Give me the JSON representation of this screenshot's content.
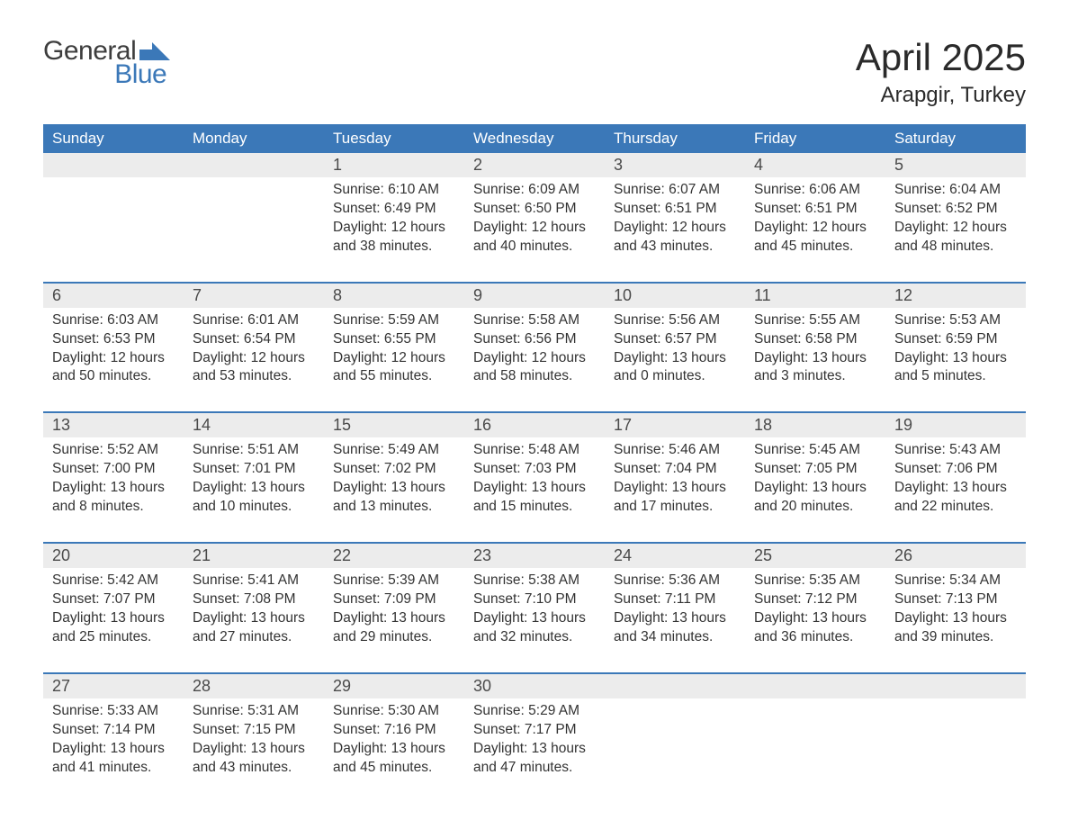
{
  "brand": {
    "word1": "General",
    "word2": "Blue",
    "color1": "#3d3d3d",
    "color2": "#3b78b8"
  },
  "title": {
    "month": "April 2025",
    "location": "Arapgir, Turkey"
  },
  "colors": {
    "header_bg": "#3b78b8",
    "header_text": "#ffffff",
    "daynum_bg": "#ececec",
    "text": "#333333",
    "week_border": "#3b78b8",
    "page_bg": "#ffffff"
  },
  "font": {
    "family": "Arial",
    "daynum_size": 18,
    "body_size": 15.5,
    "header_size": 17,
    "title_size": 42,
    "location_size": 24
  },
  "weekdays": [
    "Sunday",
    "Monday",
    "Tuesday",
    "Wednesday",
    "Thursday",
    "Friday",
    "Saturday"
  ],
  "weeks": [
    [
      null,
      null,
      {
        "n": "1",
        "sr": "6:10 AM",
        "ss": "6:49 PM",
        "dl": "12 hours and 38 minutes."
      },
      {
        "n": "2",
        "sr": "6:09 AM",
        "ss": "6:50 PM",
        "dl": "12 hours and 40 minutes."
      },
      {
        "n": "3",
        "sr": "6:07 AM",
        "ss": "6:51 PM",
        "dl": "12 hours and 43 minutes."
      },
      {
        "n": "4",
        "sr": "6:06 AM",
        "ss": "6:51 PM",
        "dl": "12 hours and 45 minutes."
      },
      {
        "n": "5",
        "sr": "6:04 AM",
        "ss": "6:52 PM",
        "dl": "12 hours and 48 minutes."
      }
    ],
    [
      {
        "n": "6",
        "sr": "6:03 AM",
        "ss": "6:53 PM",
        "dl": "12 hours and 50 minutes."
      },
      {
        "n": "7",
        "sr": "6:01 AM",
        "ss": "6:54 PM",
        "dl": "12 hours and 53 minutes."
      },
      {
        "n": "8",
        "sr": "5:59 AM",
        "ss": "6:55 PM",
        "dl": "12 hours and 55 minutes."
      },
      {
        "n": "9",
        "sr": "5:58 AM",
        "ss": "6:56 PM",
        "dl": "12 hours and 58 minutes."
      },
      {
        "n": "10",
        "sr": "5:56 AM",
        "ss": "6:57 PM",
        "dl": "13 hours and 0 minutes."
      },
      {
        "n": "11",
        "sr": "5:55 AM",
        "ss": "6:58 PM",
        "dl": "13 hours and 3 minutes."
      },
      {
        "n": "12",
        "sr": "5:53 AM",
        "ss": "6:59 PM",
        "dl": "13 hours and 5 minutes."
      }
    ],
    [
      {
        "n": "13",
        "sr": "5:52 AM",
        "ss": "7:00 PM",
        "dl": "13 hours and 8 minutes."
      },
      {
        "n": "14",
        "sr": "5:51 AM",
        "ss": "7:01 PM",
        "dl": "13 hours and 10 minutes."
      },
      {
        "n": "15",
        "sr": "5:49 AM",
        "ss": "7:02 PM",
        "dl": "13 hours and 13 minutes."
      },
      {
        "n": "16",
        "sr": "5:48 AM",
        "ss": "7:03 PM",
        "dl": "13 hours and 15 minutes."
      },
      {
        "n": "17",
        "sr": "5:46 AM",
        "ss": "7:04 PM",
        "dl": "13 hours and 17 minutes."
      },
      {
        "n": "18",
        "sr": "5:45 AM",
        "ss": "7:05 PM",
        "dl": "13 hours and 20 minutes."
      },
      {
        "n": "19",
        "sr": "5:43 AM",
        "ss": "7:06 PM",
        "dl": "13 hours and 22 minutes."
      }
    ],
    [
      {
        "n": "20",
        "sr": "5:42 AM",
        "ss": "7:07 PM",
        "dl": "13 hours and 25 minutes."
      },
      {
        "n": "21",
        "sr": "5:41 AM",
        "ss": "7:08 PM",
        "dl": "13 hours and 27 minutes."
      },
      {
        "n": "22",
        "sr": "5:39 AM",
        "ss": "7:09 PM",
        "dl": "13 hours and 29 minutes."
      },
      {
        "n": "23",
        "sr": "5:38 AM",
        "ss": "7:10 PM",
        "dl": "13 hours and 32 minutes."
      },
      {
        "n": "24",
        "sr": "5:36 AM",
        "ss": "7:11 PM",
        "dl": "13 hours and 34 minutes."
      },
      {
        "n": "25",
        "sr": "5:35 AM",
        "ss": "7:12 PM",
        "dl": "13 hours and 36 minutes."
      },
      {
        "n": "26",
        "sr": "5:34 AM",
        "ss": "7:13 PM",
        "dl": "13 hours and 39 minutes."
      }
    ],
    [
      {
        "n": "27",
        "sr": "5:33 AM",
        "ss": "7:14 PM",
        "dl": "13 hours and 41 minutes."
      },
      {
        "n": "28",
        "sr": "5:31 AM",
        "ss": "7:15 PM",
        "dl": "13 hours and 43 minutes."
      },
      {
        "n": "29",
        "sr": "5:30 AM",
        "ss": "7:16 PM",
        "dl": "13 hours and 45 minutes."
      },
      {
        "n": "30",
        "sr": "5:29 AM",
        "ss": "7:17 PM",
        "dl": "13 hours and 47 minutes."
      },
      null,
      null,
      null
    ]
  ],
  "labels": {
    "sunrise": "Sunrise: ",
    "sunset": "Sunset: ",
    "daylight": "Daylight: "
  }
}
